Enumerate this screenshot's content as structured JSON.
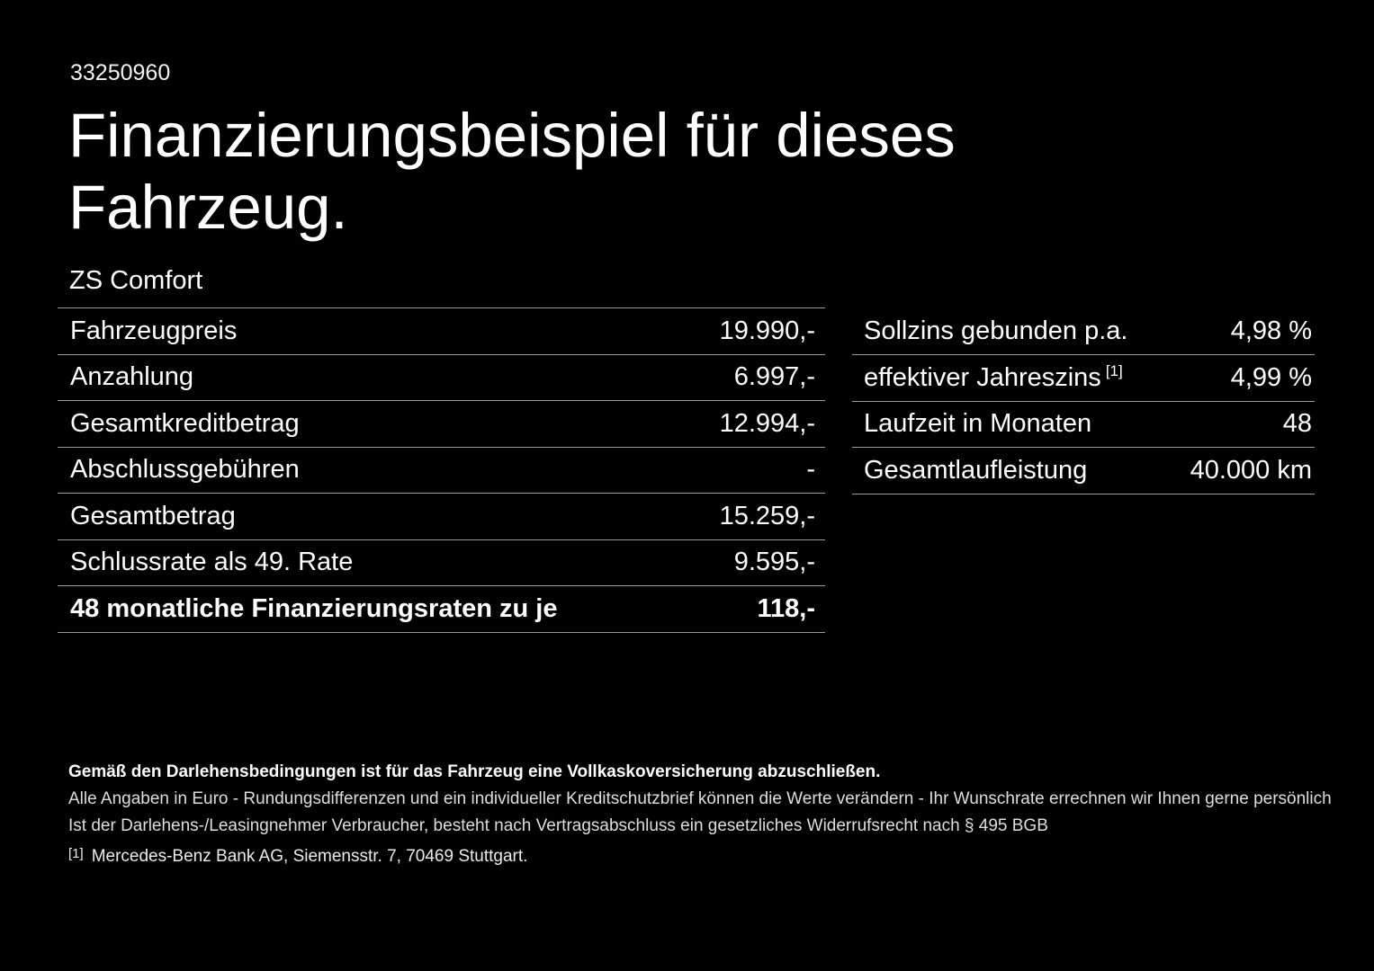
{
  "page": {
    "id_number": "33250960",
    "title_line1": "Finanzierungsbeispiel für dieses",
    "title_line2": "Fahrzeug.",
    "model_name": "ZS Comfort"
  },
  "finance_table": {
    "rows": [
      {
        "label": "Fahrzeugpreis",
        "value": "19.990,-",
        "bold": false
      },
      {
        "label": "Anzahlung",
        "value": "6.997,-",
        "bold": false
      },
      {
        "label": "Gesamtkreditbetrag",
        "value": "12.994,-",
        "bold": false
      },
      {
        "label": "Abschlussgebühren",
        "value": "-",
        "bold": false
      },
      {
        "label": "Gesamtbetrag",
        "value": "15.259,-",
        "bold": false
      },
      {
        "label": "Schlussrate als 49. Rate",
        "value": "9.595,-",
        "bold": false
      },
      {
        "label": "48 monatliche Finanzierungsraten zu je",
        "value": "118,-",
        "bold": true
      }
    ]
  },
  "conditions_table": {
    "rows": [
      {
        "label": "Sollzins gebunden p.a.",
        "value": "4,98 %"
      },
      {
        "label": "effektiver Jahreszins",
        "superscript": "[1]",
        "value": "4,99 %"
      },
      {
        "label": "Laufzeit in Monaten",
        "value": "48"
      },
      {
        "label": "Gesamtlaufleistung",
        "value": "40.000 km"
      }
    ]
  },
  "footer": {
    "bold_note": "Gemäß den Darlehensbedingungen ist für das Fahrzeug eine Vollkaskoversicherung abzuschließen.",
    "note_line1": "Alle Angaben in Euro - Rundungsdifferenzen und ein individueller Kreditschutzbrief können die Werte verändern - Ihr Wunschrate errechnen wir Ihnen gerne persönlich",
    "note_line2": "Ist der Darlehens-/Leasingnehmer Verbraucher, besteht nach Vertragsabschluss ein gesetzliches Widerrufsrecht nach § 495 BGB",
    "footnote_marker": "[1]",
    "footnote_text": "Mercedes-Benz Bank AG, Siemensstr. 7, 70469 Stuttgart."
  },
  "colors": {
    "background": "#000000",
    "text": "#ffffff",
    "divider": "#9b9b9b"
  }
}
